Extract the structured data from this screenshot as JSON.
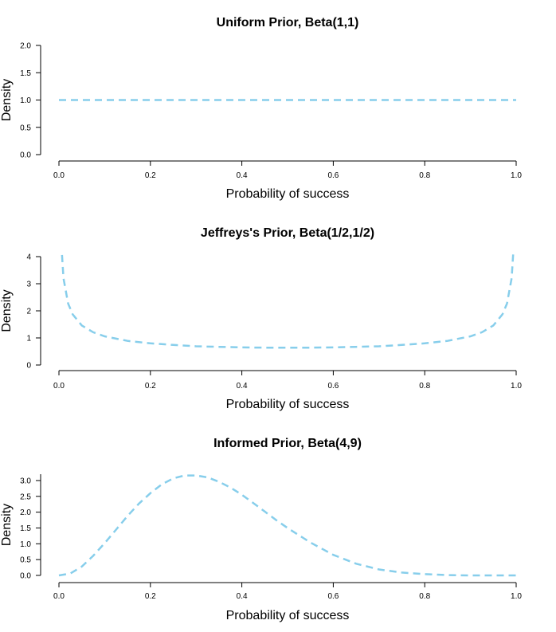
{
  "chart_data": [
    {
      "type": "line",
      "title": "Uniform Prior, Beta(1,1)",
      "xlabel": "Probability of success",
      "ylabel": "Density",
      "xlim": [
        0,
        1
      ],
      "ylim": [
        0,
        2
      ],
      "xticks": [
        "0.0",
        "0.2",
        "0.4",
        "0.6",
        "0.8",
        "1.0"
      ],
      "yticks": [
        "0.0",
        "0.5",
        "1.0",
        "1.5",
        "2.0"
      ],
      "line_style": "dashed",
      "color": "#87CEEB",
      "grid": false,
      "series": [
        {
          "x": [
            0.0,
            0.1,
            0.2,
            0.3,
            0.4,
            0.5,
            0.6,
            0.7,
            0.8,
            0.9,
            1.0
          ],
          "values": [
            1.0,
            1.0,
            1.0,
            1.0,
            1.0,
            1.0,
            1.0,
            1.0,
            1.0,
            1.0,
            1.0
          ]
        }
      ]
    },
    {
      "type": "line",
      "title": "Jeffreys's Prior, Beta(1/2,1/2)",
      "xlabel": "Probability of success",
      "ylabel": "Density",
      "xlim": [
        0,
        1
      ],
      "ylim": [
        0,
        4
      ],
      "xticks": [
        "0.0",
        "0.2",
        "0.4",
        "0.6",
        "0.8",
        "1.0"
      ],
      "yticks": [
        "0",
        "1",
        "2",
        "3",
        "4"
      ],
      "line_style": "dashed",
      "color": "#87CEEB",
      "grid": false,
      "series": [
        {
          "x": [
            0.005,
            0.01,
            0.02,
            0.03,
            0.05,
            0.075,
            0.1,
            0.15,
            0.2,
            0.25,
            0.3,
            0.35,
            0.4,
            0.45,
            0.5,
            0.55,
            0.6,
            0.65,
            0.7,
            0.75,
            0.8,
            0.85,
            0.9,
            0.925,
            0.95,
            0.97,
            0.98,
            0.99,
            0.995
          ],
          "values": [
            4.5,
            3.2,
            2.27,
            1.87,
            1.46,
            1.21,
            1.06,
            0.89,
            0.8,
            0.74,
            0.69,
            0.67,
            0.65,
            0.64,
            0.64,
            0.64,
            0.65,
            0.67,
            0.69,
            0.74,
            0.8,
            0.89,
            1.06,
            1.21,
            1.46,
            1.87,
            2.27,
            3.2,
            4.5
          ]
        }
      ]
    },
    {
      "type": "line",
      "title": "Informed Prior, Beta(4,9)",
      "xlabel": "Probability of success",
      "ylabel": "Density",
      "xlim": [
        0,
        1
      ],
      "ylim": [
        0,
        3.2
      ],
      "xticks": [
        "0.0",
        "0.2",
        "0.4",
        "0.6",
        "0.8",
        "1.0"
      ],
      "yticks": [
        "0.0",
        "0.5",
        "1.0",
        "1.5",
        "2.0",
        "2.5",
        "3.0"
      ],
      "line_style": "dashed",
      "color": "#87CEEB",
      "grid": false,
      "series": [
        {
          "x": [
            0.0,
            0.025,
            0.05,
            0.075,
            0.1,
            0.125,
            0.15,
            0.175,
            0.2,
            0.225,
            0.25,
            0.275,
            0.3,
            0.325,
            0.35,
            0.375,
            0.4,
            0.425,
            0.45,
            0.475,
            0.5,
            0.55,
            0.6,
            0.65,
            0.7,
            0.75,
            0.8,
            0.85,
            0.9,
            0.95,
            1.0
          ],
          "values": [
            0.0,
            0.06,
            0.28,
            0.62,
            1.02,
            1.45,
            1.88,
            2.27,
            2.6,
            2.88,
            3.07,
            3.16,
            3.16,
            3.1,
            2.96,
            2.78,
            2.55,
            2.29,
            2.02,
            1.75,
            1.5,
            1.04,
            0.65,
            0.37,
            0.19,
            0.09,
            0.04,
            0.01,
            0.0,
            0.0,
            0.0
          ]
        }
      ]
    }
  ]
}
